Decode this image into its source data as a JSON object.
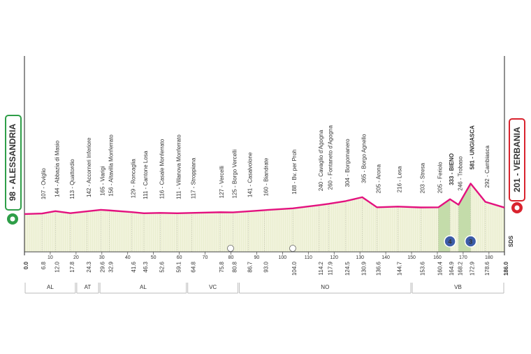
{
  "chart_data": {
    "type": "profile",
    "color": "#e3127f",
    "start": {
      "label": "98 - ALESSANDRIA",
      "km": {
        "value": 0,
        "label": "0.0"
      },
      "elevation": 98
    },
    "finish": {
      "label": "201 - VERBANIA",
      "km": {
        "value": 186,
        "label": "186.0"
      },
      "elevation": 201
    },
    "waypoints": [
      {
        "label": "107 - Oviglio",
        "km": 6.8,
        "elevation": 107
      },
      {
        "label": "144 - Abbazia di Masio",
        "km": {
          "value": 12,
          "label": "12.0"
        },
        "elevation": 144
      },
      {
        "label": "113 - Quattordio",
        "km": 17.8,
        "elevation": 113
      },
      {
        "label": "142 - Accorneri Inferiore",
        "km": 24.3,
        "elevation": 142
      },
      {
        "label": "165 - Viarigi",
        "km": 29.6,
        "elevation": 165
      },
      {
        "label": "156 - Altavilla Monferrato",
        "km": 32.9,
        "elevation": 156
      },
      {
        "label": "129 - Roncaglia",
        "km": 41.6,
        "elevation": 129
      },
      {
        "label": "111 - Cantone Losa",
        "km": 46.3,
        "elevation": 111
      },
      {
        "label": "116 - Casale Monferrato",
        "km": 52.6,
        "elevation": 116
      },
      {
        "label": "111 - Villanova Monferrato",
        "km": 59.1,
        "elevation": 111
      },
      {
        "label": "117 - Stroppiana",
        "km": 64.8,
        "elevation": 117
      },
      {
        "label": "127 - Vercelli",
        "km": 75.8,
        "elevation": 127
      },
      {
        "label": "125 - Borgo Vercelli",
        "km": 80.8,
        "elevation": 125
      },
      {
        "label": "141 - Casalvolone",
        "km": 86.7,
        "elevation": 141
      },
      {
        "label": "160 - Biandrate",
        "km": {
          "value": 93,
          "label": "93.0"
        },
        "elevation": 160
      },
      {
        "label": "188 - Bv. per Proh",
        "km": {
          "value": 104,
          "label": "104.0"
        },
        "elevation": 188
      },
      {
        "label": "240 - Cavaglio d'Agogna",
        "km": 114.2,
        "elevation": 240
      },
      {
        "label": "260 - Fontaneto d'Agogna",
        "km": 117.9,
        "elevation": 260
      },
      {
        "label": "304 - Borgomanero",
        "km": 124.5,
        "elevation": 304
      },
      {
        "label": "365 - Borgo Agnello",
        "km": 130.9,
        "elevation": 365
      },
      {
        "label": "205 - Arona",
        "km": 136.6,
        "elevation": 205
      },
      {
        "label": "216 - Lesa",
        "km": 144.7,
        "elevation": 216
      },
      {
        "label": "203 - Stresa",
        "km": 153.6,
        "elevation": 203
      },
      {
        "label": "205 - Feriolo",
        "km": 160.4,
        "elevation": 205
      },
      {
        "label": "333 - BIENO",
        "km": 164.9,
        "elevation": 333,
        "bold": true
      },
      {
        "label": "246 - Trobaso",
        "km": 168.2,
        "elevation": 246
      },
      {
        "label": "581 - UNGIASCA",
        "km": 172.9,
        "elevation": 581,
        "bold": true
      },
      {
        "label": "292 - Cambiasca",
        "km": 178.6,
        "elevation": 292
      }
    ],
    "climbs": [
      {
        "km": 164.9,
        "label": "4"
      },
      {
        "km": 172.9,
        "label": "3"
      }
    ],
    "regions": [
      {
        "label": "AL",
        "km": [
          0,
          20
        ]
      },
      {
        "label": "AT",
        "km": [
          20,
          29
        ]
      },
      {
        "label": "AL",
        "km": [
          29,
          63
        ]
      },
      {
        "label": "VC",
        "km": [
          63,
          83
        ]
      },
      {
        "label": "NO",
        "km": [
          83,
          150
        ]
      },
      {
        "label": "VB",
        "km": [
          150,
          186
        ]
      }
    ],
    "sds": "SDS",
    "xlim": [
      0,
      186
    ],
    "xticks": [
      10,
      20,
      30,
      40,
      50,
      60,
      70,
      80,
      90,
      100,
      110,
      120,
      130,
      140,
      150,
      160,
      170,
      180
    ],
    "ylim": [
      -500,
      2600
    ]
  }
}
